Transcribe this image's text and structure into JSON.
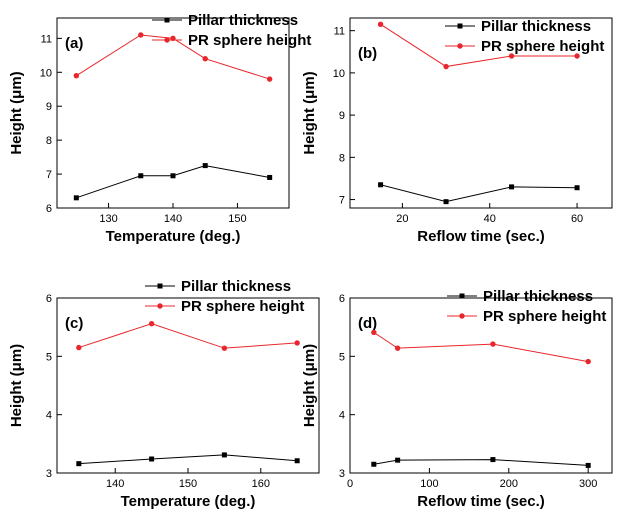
{
  "colors": {
    "pillar": "#000000",
    "sphere": "#e8262b"
  },
  "chart_data": [
    {
      "type": "line",
      "panel_label": "(a)",
      "xlabel": "Temperature (deg.)",
      "ylabel": "Height (μm)",
      "xlim": [
        122,
        158
      ],
      "ylim": [
        6,
        11.6
      ],
      "xticks": [
        130,
        140,
        150
      ],
      "yticks": [
        6,
        7,
        8,
        9,
        10,
        11
      ],
      "legend": "top",
      "series": [
        {
          "name": "Pillar thickness",
          "marker": "square",
          "x": [
            125,
            135,
            140,
            145,
            155
          ],
          "y": [
            6.3,
            6.95,
            6.95,
            7.25,
            6.9
          ]
        },
        {
          "name": "PR sphere height",
          "marker": "circle",
          "x": [
            125,
            135,
            140,
            145,
            155
          ],
          "y": [
            9.9,
            11.1,
            11.0,
            10.4,
            9.8
          ]
        }
      ]
    },
    {
      "type": "line",
      "panel_label": "(b)",
      "xlabel": "Reflow time (sec.)",
      "ylabel": "Height (μm)",
      "xlim": [
        8,
        68
      ],
      "ylim": [
        6.8,
        11.3
      ],
      "xticks": [
        20,
        40,
        60
      ],
      "yticks": [
        7,
        8,
        9,
        10,
        11
      ],
      "legend": "top",
      "series": [
        {
          "name": "Pillar thickness",
          "marker": "square",
          "x": [
            15,
            30,
            45,
            60
          ],
          "y": [
            7.35,
            6.95,
            7.3,
            7.28
          ]
        },
        {
          "name": "PR sphere height",
          "marker": "circle",
          "x": [
            15,
            30,
            45,
            60
          ],
          "y": [
            11.15,
            10.15,
            10.4,
            10.4
          ]
        }
      ]
    },
    {
      "type": "line",
      "panel_label": "(c)",
      "xlabel": "Temperature (deg.)",
      "ylabel": "Height (μm)",
      "xlim": [
        132,
        168
      ],
      "ylim": [
        3,
        6
      ],
      "xticks": [
        140,
        150,
        160
      ],
      "yticks": [
        3,
        4,
        5,
        6
      ],
      "legend": "top",
      "series": [
        {
          "name": "Pillar thickness",
          "marker": "square",
          "x": [
            135,
            145,
            155,
            165
          ],
          "y": [
            3.16,
            3.24,
            3.31,
            3.21
          ]
        },
        {
          "name": "PR sphere height",
          "marker": "circle",
          "x": [
            135,
            145,
            155,
            165
          ],
          "y": [
            5.15,
            5.56,
            5.14,
            5.23
          ]
        }
      ]
    },
    {
      "type": "line",
      "panel_label": "(d)",
      "xlabel": "Reflow time (sec.)",
      "ylabel": "Height (μm)",
      "xlim": [
        0,
        330
      ],
      "ylim": [
        3,
        6
      ],
      "xticks": [
        0,
        100,
        200,
        300
      ],
      "yticks": [
        3,
        4,
        5,
        6
      ],
      "legend": "top",
      "series": [
        {
          "name": "Pillar thickness",
          "marker": "square",
          "x": [
            30,
            60,
            180,
            300
          ],
          "y": [
            3.15,
            3.22,
            3.23,
            3.13
          ]
        },
        {
          "name": "PR sphere height",
          "marker": "circle",
          "x": [
            30,
            60,
            180,
            300
          ],
          "y": [
            5.41,
            5.14,
            5.21,
            4.91
          ]
        }
      ]
    }
  ]
}
